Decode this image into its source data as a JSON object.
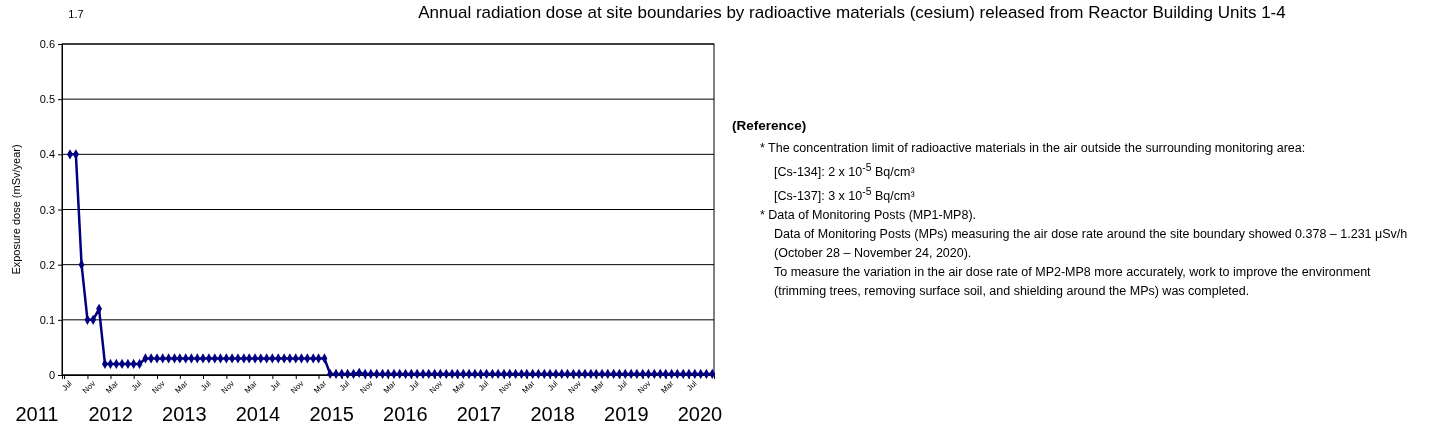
{
  "chart_data": {
    "type": "line",
    "title": "Annual radiation dose at site boundaries by radioactive materials (cesium) released from Reactor Building Units 1-4",
    "ylabel": "Exposure dose (mSv/year)",
    "x": [
      "2011-08",
      "2011-09",
      "2011-10",
      "2011-11",
      "2011-12",
      "2012-01",
      "2012-02",
      "2012-03",
      "2012-04",
      "2012-05",
      "2012-06",
      "2012-07",
      "2012-08",
      "2012-09",
      "2012-10",
      "2012-11",
      "2012-12",
      "2013-01",
      "2013-02",
      "2013-03",
      "2013-04",
      "2013-05",
      "2013-06",
      "2013-07",
      "2013-08",
      "2013-09",
      "2013-10",
      "2013-11",
      "2013-12",
      "2014-01",
      "2014-02",
      "2014-03",
      "2014-04",
      "2014-05",
      "2014-06",
      "2014-07",
      "2014-08",
      "2014-09",
      "2014-10",
      "2014-11",
      "2014-12",
      "2015-01",
      "2015-02",
      "2015-03",
      "2015-04",
      "2015-05",
      "2015-06",
      "2015-07",
      "2015-08",
      "2015-09",
      "2015-10",
      "2015-11",
      "2015-12",
      "2016-01",
      "2016-02",
      "2016-03",
      "2016-04",
      "2016-05",
      "2016-06",
      "2016-07",
      "2016-08",
      "2016-09",
      "2016-10",
      "2016-11",
      "2016-12",
      "2017-01",
      "2017-02",
      "2017-03",
      "2017-04",
      "2017-05",
      "2017-06",
      "2017-07",
      "2017-08",
      "2017-09",
      "2017-10",
      "2017-11",
      "2017-12",
      "2018-01",
      "2018-02",
      "2018-03",
      "2018-04",
      "2018-05",
      "2018-06",
      "2018-07",
      "2018-08",
      "2018-09",
      "2018-10",
      "2018-11",
      "2018-12",
      "2019-01",
      "2019-02",
      "2019-03",
      "2019-04",
      "2019-05",
      "2019-06",
      "2019-07",
      "2019-08",
      "2019-09",
      "2019-10",
      "2019-11",
      "2019-12",
      "2020-01",
      "2020-02",
      "2020-03",
      "2020-04",
      "2020-05",
      "2020-06",
      "2020-07",
      "2020-08",
      "2020-09",
      "2020-10",
      "2020-11"
    ],
    "series": [
      {
        "color": "#000080",
        "values": [
          0.4,
          0.4,
          0.2,
          0.1,
          0.1,
          0.12,
          0.02,
          0.02,
          0.02,
          0.02,
          0.02,
          0.02,
          0.02,
          0.03,
          0.03,
          0.03,
          0.03,
          0.03,
          0.03,
          0.03,
          0.03,
          0.03,
          0.03,
          0.03,
          0.03,
          0.03,
          0.03,
          0.03,
          0.03,
          0.03,
          0.03,
          0.03,
          0.03,
          0.03,
          0.03,
          0.03,
          0.03,
          0.03,
          0.03,
          0.03,
          0.03,
          0.03,
          0.03,
          0.03,
          0.03,
          0.002,
          0.002,
          0.002,
          0.002,
          0.002,
          0.004,
          0.002,
          0.002,
          0.002,
          0.002,
          0.002,
          0.002,
          0.002,
          0.002,
          0.002,
          0.002,
          0.002,
          0.002,
          0.002,
          0.002,
          0.002,
          0.002,
          0.002,
          0.002,
          0.002,
          0.002,
          0.002,
          0.002,
          0.002,
          0.002,
          0.002,
          0.002,
          0.002,
          0.002,
          0.002,
          0.002,
          0.002,
          0.002,
          0.002,
          0.002,
          0.002,
          0.002,
          0.002,
          0.002,
          0.002,
          0.002,
          0.002,
          0.002,
          0.002,
          0.002,
          0.002,
          0.002,
          0.002,
          0.002,
          0.002,
          0.002,
          0.002,
          0.002,
          0.002,
          0.002,
          0.002,
          0.002,
          0.002,
          0.002,
          0.002,
          0.002,
          0.002
        ]
      }
    ],
    "xlim": [
      "2011-06-20",
      "2020-11-10"
    ],
    "xticks": [
      {
        "value": "2011-07",
        "label": "Jul"
      },
      {
        "value": "2011-11",
        "label": "Nov"
      },
      {
        "value": "2012-03",
        "label": "Mar"
      },
      {
        "value": "2012-07",
        "label": "Jul"
      },
      {
        "value": "2012-11",
        "label": "Nov"
      },
      {
        "value": "2013-03",
        "label": "Mar"
      },
      {
        "value": "2013-07",
        "label": "Jul"
      },
      {
        "value": "2013-11",
        "label": "Nov"
      },
      {
        "value": "2014-03",
        "label": "Mar"
      },
      {
        "value": "2014-07",
        "label": "Jul"
      },
      {
        "value": "2014-11",
        "label": "Nov"
      },
      {
        "value": "2015-03",
        "label": "Mar"
      },
      {
        "value": "2015-07",
        "label": "Jul"
      },
      {
        "value": "2015-11",
        "label": "Nov"
      },
      {
        "value": "2016-03",
        "label": "Mar"
      },
      {
        "value": "2016-07",
        "label": "Jul"
      },
      {
        "value": "2016-11",
        "label": "Nov"
      },
      {
        "value": "2017-03",
        "label": "Mar"
      },
      {
        "value": "2017-07",
        "label": "Jul"
      },
      {
        "value": "2017-11",
        "label": "Nov"
      },
      {
        "value": "2018-03",
        "label": "Mar"
      },
      {
        "value": "2018-07",
        "label": "Jul"
      },
      {
        "value": "2018-11",
        "label": "Nov"
      },
      {
        "value": "2019-03",
        "label": "Mar"
      },
      {
        "value": "2019-07",
        "label": "Jul"
      },
      {
        "value": "2019-11",
        "label": "Nov"
      },
      {
        "value": "2020-03",
        "label": "Mar"
      },
      {
        "value": "2020-07",
        "label": "Jul"
      }
    ],
    "ylim": [
      0,
      0.6
    ],
    "yticks": [
      0,
      0.1,
      0.2,
      0.3,
      0.4,
      0.5,
      0.6
    ],
    "grid": "y",
    "marker": "diamond",
    "line_style": "solid",
    "annotations": [
      "1.7",
      "2011",
      "2012",
      "2013",
      "2014",
      "2015",
      "2016",
      "2017",
      "2018",
      "2019",
      "2020",
      "(Reference)",
      "* The concentration limit of radioactive materials in the air outside the surrounding monitoring area:",
      "[Cs-134]: 2 x 10$^{-5}$ Bq/cm³",
      "[Cs-137]: 3 x 10$^{-5}$ Bq/cm³",
      "* Data of Monitoring Posts (MP1-MP8).",
      "Data of Monitoring Posts (MPs) measuring the air dose rate around the site boundary showed 0.378 – 1.231 μSv/h (October 28 – November 24, 2020).",
      "To measure the variation in the air dose rate of MP2-MP8 more accurately, work to improve the environment (trimming trees, removing surface soil, and shielding around the MPs) was completed."
    ]
  }
}
